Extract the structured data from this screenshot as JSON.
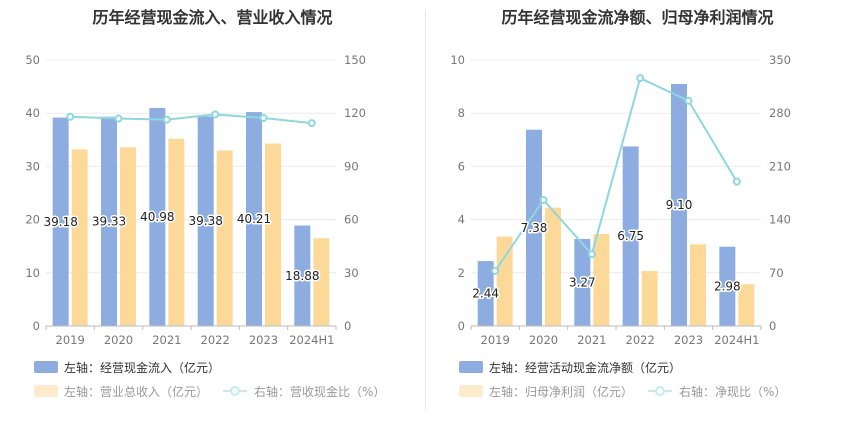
{
  "colors": {
    "bar_primary": "#8dade0",
    "bar_secondary": "#fdd999",
    "line": "#8fd7de",
    "grid": "#ececec",
    "axis": "#bbbbbb"
  },
  "chart_data": [
    {
      "type": "bar",
      "title": "历年经营现金流入、营业收入情况",
      "categories": [
        "2019",
        "2020",
        "2021",
        "2022",
        "2023",
        "2024H1"
      ],
      "left_axis": {
        "ylim": [
          0,
          50
        ],
        "ticks": [
          0,
          10,
          20,
          30,
          40,
          50
        ]
      },
      "right_axis": {
        "ylim": [
          0,
          150
        ],
        "ticks": [
          0,
          30,
          60,
          90,
          120,
          150
        ]
      },
      "series": [
        {
          "name": "左轴：经营现金流入（亿元）",
          "type": "bar",
          "axis": "left",
          "values": [
            39.18,
            39.33,
            40.98,
            39.38,
            40.21,
            18.88
          ],
          "labels": [
            "39.18",
            "39.33",
            "40.98",
            "39.38",
            "40.21",
            "18.88"
          ]
        },
        {
          "name": "左轴：营业总收入（亿元）",
          "type": "bar",
          "axis": "left",
          "values": [
            33.2,
            33.6,
            35.2,
            33.0,
            34.3,
            16.5
          ]
        },
        {
          "name": "右轴：营收现金比（%）",
          "type": "line",
          "axis": "right",
          "values": [
            118.0,
            117.0,
            116.4,
            119.3,
            117.3,
            114.4
          ]
        }
      ]
    },
    {
      "type": "bar",
      "title": "历年经营现金流净额、归母净利润情况",
      "categories": [
        "2019",
        "2020",
        "2021",
        "2022",
        "2023",
        "2024H1"
      ],
      "left_axis": {
        "ylim": [
          0,
          10
        ],
        "ticks": [
          0,
          2,
          4,
          6,
          8,
          10
        ]
      },
      "right_axis": {
        "ylim": [
          0,
          350
        ],
        "ticks": [
          0,
          70,
          140,
          210,
          280,
          350
        ]
      },
      "series": [
        {
          "name": "左轴：经营活动现金流净额（亿元）",
          "type": "bar",
          "axis": "left",
          "values": [
            2.44,
            7.38,
            3.27,
            6.75,
            9.1,
            2.98
          ],
          "labels": [
            "2.44",
            "7.38",
            "3.27",
            "6.75",
            "9.10",
            "2.98"
          ]
        },
        {
          "name": "左轴：归母净利润（亿元）",
          "type": "bar",
          "axis": "left",
          "values": [
            3.36,
            4.45,
            3.46,
            2.07,
            3.07,
            1.57
          ]
        },
        {
          "name": "右轴：净现比（%）",
          "type": "line",
          "axis": "right",
          "values": [
            72.6,
            165.8,
            94.5,
            326.1,
            296.4,
            190.0
          ]
        }
      ]
    }
  ]
}
